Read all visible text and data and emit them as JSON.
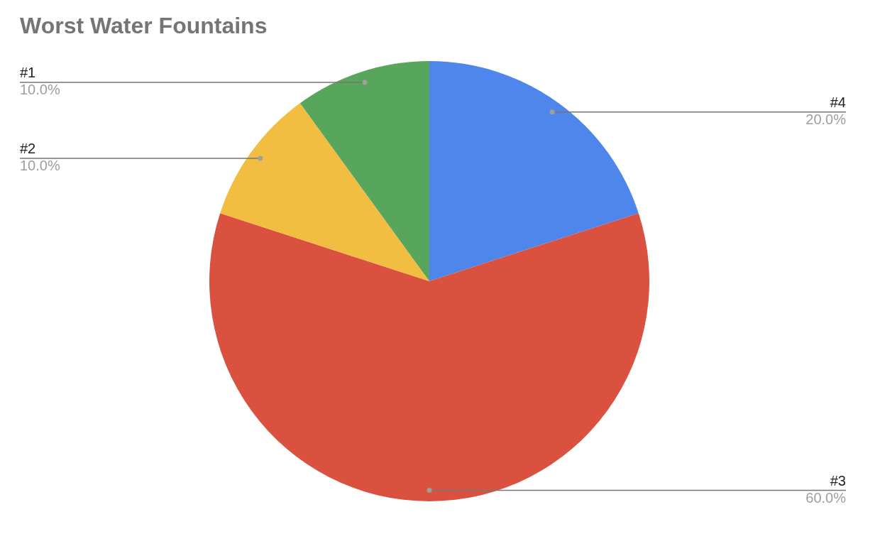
{
  "chart_data": {
    "type": "pie",
    "title": "Worst Water Fountains",
    "categories": [
      "#4",
      "#3",
      "#2",
      "#1"
    ],
    "values": [
      20,
      60,
      10,
      10
    ],
    "value_labels": [
      "20.0%",
      "60.0%",
      "10.0%",
      "10.0%"
    ],
    "colors": [
      "#4f86ec",
      "#db5140",
      "#f1be42",
      "#58a65c"
    ],
    "legend": false
  }
}
